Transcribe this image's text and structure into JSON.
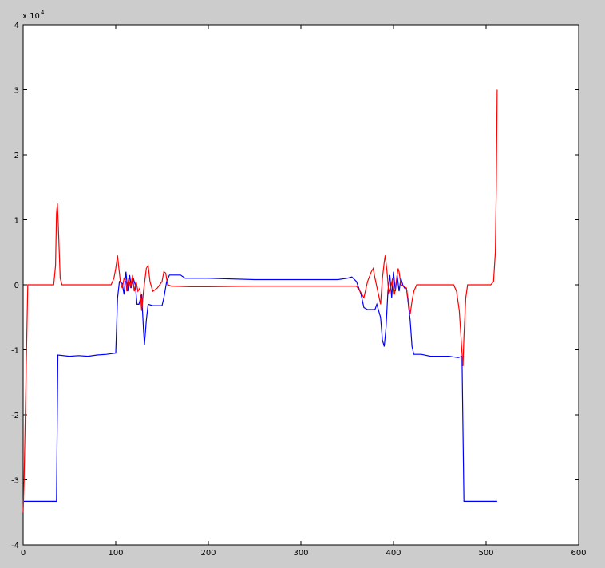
{
  "chart_data": {
    "type": "line",
    "title": "",
    "xlabel": "",
    "ylabel": "",
    "xlim": [
      0,
      600
    ],
    "ylim": [
      -4,
      4
    ],
    "x_ticks": [
      0,
      100,
      200,
      300,
      400,
      500,
      600
    ],
    "y_ticks": [
      -4,
      -3,
      -2,
      -1,
      0,
      1,
      2,
      3,
      4
    ],
    "x_tick_labels": [
      "0",
      "100",
      "200",
      "300",
      "400",
      "500",
      "600"
    ],
    "y_tick_labels": [
      "-4",
      "-3",
      "-2",
      "-1",
      "0",
      "1",
      "2",
      "3",
      "4"
    ],
    "y_exponent_label": "x 10",
    "y_exponent_power": "4",
    "grid": false,
    "legend": "none",
    "series": [
      {
        "color": "#0000ff",
        "points": [
          [
            0,
            -3.33
          ],
          [
            36,
            -3.33
          ],
          [
            37.5,
            -1.08
          ],
          [
            50,
            -1.1
          ],
          [
            60,
            -1.09
          ],
          [
            70,
            -1.1
          ],
          [
            80,
            -1.08
          ],
          [
            90,
            -1.07
          ],
          [
            100,
            -1.05
          ],
          [
            102,
            -0.2
          ],
          [
            104,
            0.05
          ],
          [
            107,
            0.02
          ],
          [
            109,
            -0.15
          ],
          [
            111,
            0.2
          ],
          [
            113,
            -0.1
          ],
          [
            115,
            0.15
          ],
          [
            117,
            -0.05
          ],
          [
            119,
            0.1
          ],
          [
            121,
            0.0
          ],
          [
            123,
            -0.3
          ],
          [
            125,
            -0.3
          ],
          [
            128,
            -0.15
          ],
          [
            130,
            -0.7
          ],
          [
            131,
            -0.92
          ],
          [
            133,
            -0.55
          ],
          [
            135,
            -0.3
          ],
          [
            140,
            -0.32
          ],
          [
            150,
            -0.32
          ],
          [
            152,
            -0.2
          ],
          [
            155,
            0.05
          ],
          [
            158,
            0.15
          ],
          [
            165,
            0.15
          ],
          [
            170,
            0.15
          ],
          [
            175,
            0.1
          ],
          [
            200,
            0.1
          ],
          [
            250,
            0.08
          ],
          [
            300,
            0.08
          ],
          [
            340,
            0.08
          ],
          [
            350,
            0.1
          ],
          [
            355,
            0.12
          ],
          [
            360,
            0.05
          ],
          [
            365,
            -0.15
          ],
          [
            368,
            -0.35
          ],
          [
            372,
            -0.38
          ],
          [
            380,
            -0.38
          ],
          [
            382,
            -0.3
          ],
          [
            386,
            -0.5
          ],
          [
            388,
            -0.85
          ],
          [
            390,
            -0.95
          ],
          [
            392,
            -0.65
          ],
          [
            394,
            -0.1
          ],
          [
            396,
            0.15
          ],
          [
            398,
            -0.2
          ],
          [
            400,
            0.2
          ],
          [
            402,
            -0.1
          ],
          [
            404,
            0.15
          ],
          [
            406,
            -0.1
          ],
          [
            408,
            0.1
          ],
          [
            410,
            0.0
          ],
          [
            412,
            -0.05
          ],
          [
            414,
            -0.05
          ],
          [
            416,
            -0.3
          ],
          [
            418,
            -0.55
          ],
          [
            420,
            -0.95
          ],
          [
            422,
            -1.07
          ],
          [
            430,
            -1.07
          ],
          [
            440,
            -1.1
          ],
          [
            450,
            -1.1
          ],
          [
            460,
            -1.1
          ],
          [
            470,
            -1.12
          ],
          [
            474,
            -1.1
          ],
          [
            476,
            -3.33
          ],
          [
            480,
            -3.33
          ],
          [
            500,
            -3.33
          ],
          [
            512,
            -3.33
          ]
        ]
      },
      {
        "color": "#ff0000",
        "points": [
          [
            0,
            -3.5
          ],
          [
            1,
            -3.0
          ],
          [
            3,
            -1.5
          ],
          [
            5,
            0.0
          ],
          [
            10,
            0.0
          ],
          [
            20,
            0.0
          ],
          [
            33,
            0.0
          ],
          [
            35,
            0.3
          ],
          [
            36,
            1.1
          ],
          [
            37,
            1.25
          ],
          [
            38,
            0.9
          ],
          [
            40,
            0.1
          ],
          [
            42,
            0.0
          ],
          [
            60,
            0.0
          ],
          [
            80,
            0.0
          ],
          [
            95,
            0.0
          ],
          [
            98,
            0.1
          ],
          [
            100,
            0.25
          ],
          [
            102,
            0.45
          ],
          [
            103,
            0.3
          ],
          [
            105,
            0.05
          ],
          [
            107,
            -0.05
          ],
          [
            109,
            0.1
          ],
          [
            111,
            0.05
          ],
          [
            112,
            -0.1
          ],
          [
            114,
            0.1
          ],
          [
            116,
            -0.05
          ],
          [
            118,
            0.15
          ],
          [
            120,
            -0.1
          ],
          [
            122,
            0.05
          ],
          [
            124,
            -0.1
          ],
          [
            126,
            -0.05
          ],
          [
            128,
            -0.4
          ],
          [
            130,
            -0.1
          ],
          [
            133,
            0.25
          ],
          [
            135,
            0.3
          ],
          [
            137,
            0.05
          ],
          [
            140,
            -0.1
          ],
          [
            145,
            -0.05
          ],
          [
            150,
            0.05
          ],
          [
            152,
            0.2
          ],
          [
            154,
            0.18
          ],
          [
            156,
            0.0
          ],
          [
            160,
            -0.02
          ],
          [
            180,
            -0.03
          ],
          [
            200,
            -0.03
          ],
          [
            250,
            -0.02
          ],
          [
            300,
            -0.02
          ],
          [
            350,
            -0.02
          ],
          [
            360,
            -0.02
          ],
          [
            364,
            -0.1
          ],
          [
            368,
            -0.2
          ],
          [
            372,
            0.05
          ],
          [
            376,
            0.2
          ],
          [
            378,
            0.25
          ],
          [
            380,
            0.1
          ],
          [
            383,
            -0.1
          ],
          [
            386,
            -0.3
          ],
          [
            388,
            0.1
          ],
          [
            390,
            0.35
          ],
          [
            391,
            0.45
          ],
          [
            393,
            0.2
          ],
          [
            395,
            -0.15
          ],
          [
            397,
            -0.05
          ],
          [
            399,
            0.1
          ],
          [
            401,
            -0.15
          ],
          [
            403,
            0.05
          ],
          [
            405,
            0.25
          ],
          [
            406,
            0.2
          ],
          [
            408,
            0.0
          ],
          [
            411,
            -0.02
          ],
          [
            414,
            -0.05
          ],
          [
            416,
            -0.25
          ],
          [
            418,
            -0.45
          ],
          [
            420,
            -0.25
          ],
          [
            422,
            -0.1
          ],
          [
            425,
            0.0
          ],
          [
            450,
            0.0
          ],
          [
            460,
            0.0
          ],
          [
            465,
            0.0
          ],
          [
            468,
            -0.1
          ],
          [
            471,
            -0.4
          ],
          [
            474,
            -1.05
          ],
          [
            475,
            -1.25
          ],
          [
            476,
            -0.8
          ],
          [
            478,
            -0.2
          ],
          [
            480,
            0.0
          ],
          [
            490,
            0.0
          ],
          [
            500,
            0.0
          ],
          [
            505,
            0.0
          ],
          [
            508,
            0.05
          ],
          [
            510,
            0.5
          ],
          [
            511,
            1.5
          ],
          [
            512,
            3.0
          ]
        ]
      }
    ]
  }
}
